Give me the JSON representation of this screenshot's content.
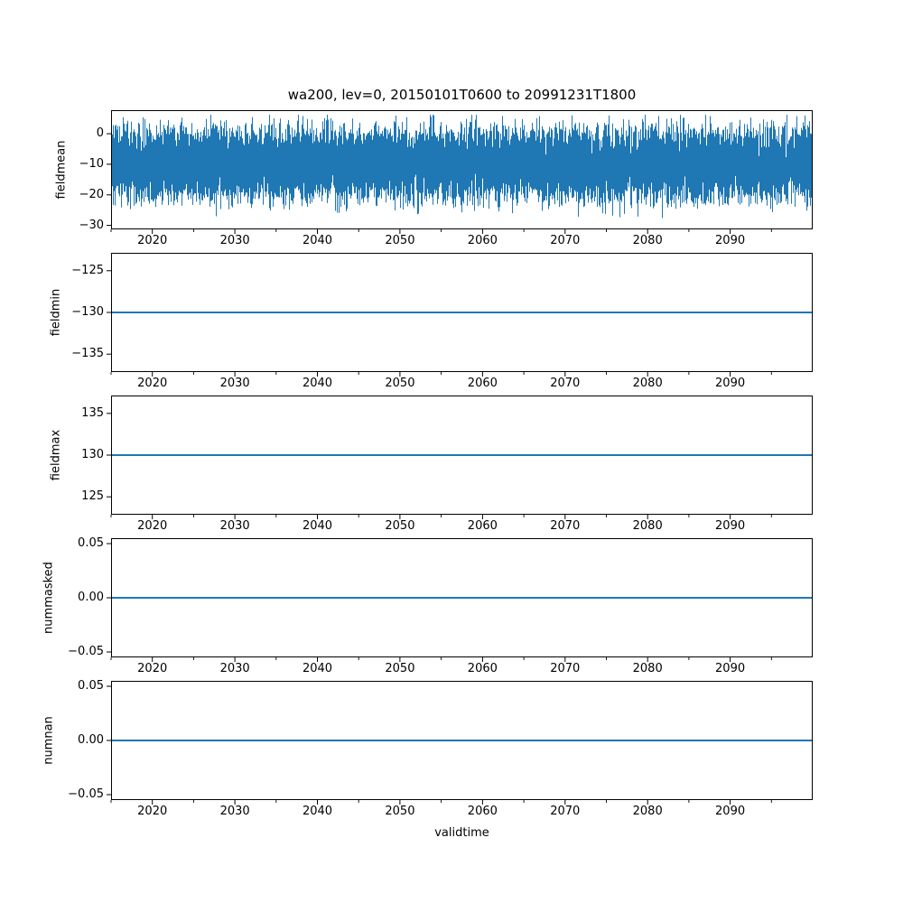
{
  "figure": {
    "title": "wa200, lev=0, 20150101T0600 to 20991231T1800",
    "background": "#ffffff",
    "text_color": "#000000",
    "spine_color": "#000000",
    "line_color": "#1f77b4"
  },
  "xaxis": {
    "label": "validtime",
    "lim": [
      2015,
      2100
    ],
    "major_ticks": [
      2020,
      2030,
      2040,
      2050,
      2060,
      2070,
      2080,
      2090
    ],
    "major_tick_labels": [
      "2020",
      "2030",
      "2040",
      "2050",
      "2060",
      "2070",
      "2080",
      "2090"
    ],
    "minor_step": 5
  },
  "chart_data": [
    {
      "name": "fieldmean",
      "type": "line",
      "ylabel": "fieldmean",
      "ylim": [
        -31.3,
        7.7
      ],
      "yticks": [
        0,
        -10,
        -20,
        -30
      ],
      "ytick_labels": [
        "0",
        "−10",
        "−20",
        "−30"
      ],
      "series_summary": {
        "description": "dense high-frequency noisy time series, statistically stationary from 2015 to 2100",
        "approx_mean": -10,
        "approx_std": 5.6,
        "typical_band": [
          -21,
          1
        ],
        "approx_min": -29.5,
        "approx_max": 6
      }
    },
    {
      "name": "fieldmin",
      "type": "constant",
      "ylabel": "fieldmin",
      "value": -130,
      "ylim": [
        -137.15,
        -122.85
      ],
      "yticks": [
        -125,
        -130,
        -135
      ],
      "ytick_labels": [
        "−125",
        "−130",
        "−135"
      ]
    },
    {
      "name": "fieldmax",
      "type": "constant",
      "ylabel": "fieldmax",
      "value": 130,
      "ylim": [
        122.85,
        137.15
      ],
      "yticks": [
        135,
        130,
        125
      ],
      "ytick_labels": [
        "135",
        "130",
        "125"
      ]
    },
    {
      "name": "nummasked",
      "type": "constant",
      "ylabel": "nummasked",
      "value": 0,
      "ylim": [
        -0.055,
        0.055
      ],
      "yticks": [
        0.05,
        0,
        -0.05
      ],
      "ytick_labels": [
        "0.05",
        "0.00",
        "−0.05"
      ]
    },
    {
      "name": "numnan",
      "type": "constant",
      "ylabel": "numnan",
      "value": 0,
      "ylim": [
        -0.055,
        0.055
      ],
      "yticks": [
        0.05,
        0,
        -0.05
      ],
      "ytick_labels": [
        "0.05",
        "0.00",
        "−0.05"
      ]
    }
  ]
}
